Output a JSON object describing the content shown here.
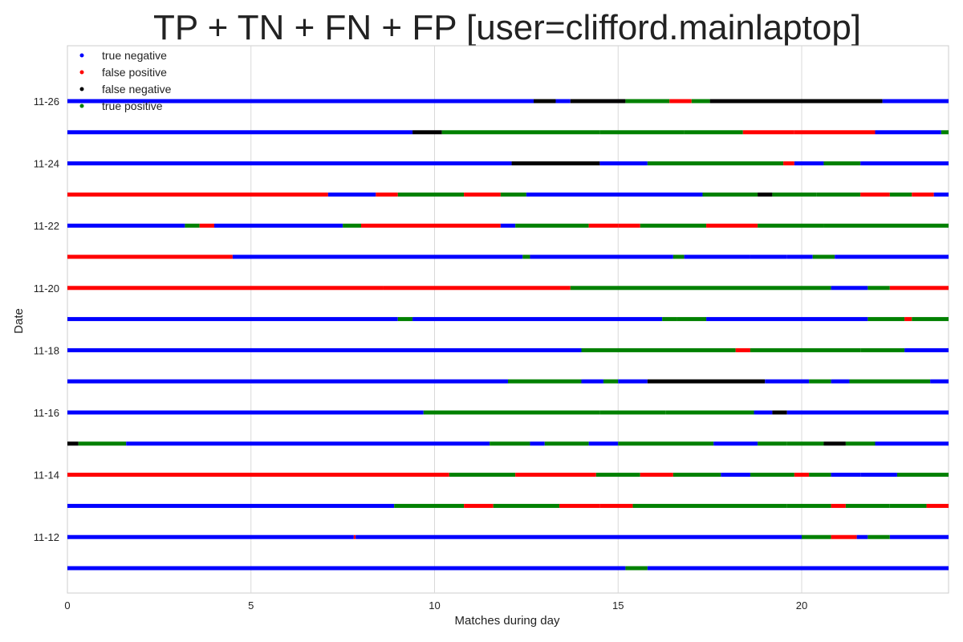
{
  "chart_data": {
    "type": "scatter",
    "title": "TP + TN + FN + FP [user=clifford.mainlaptop]",
    "xlabel": "Matches during day",
    "ylabel": "Date",
    "xlim": [
      0,
      24
    ],
    "x_ticks": [
      0,
      5,
      10,
      15,
      20
    ],
    "y_tick_labels": [
      "11-12",
      "11-14",
      "11-16",
      "11-18",
      "11-20",
      "11-22",
      "11-24",
      "11-26"
    ],
    "grid": true,
    "legend_placement": "top-left",
    "series": [
      {
        "name": "true negative",
        "color": "#0000ff"
      },
      {
        "name": "false positive",
        "color": "#ff0000"
      },
      {
        "name": "false negative",
        "color": "#000000"
      },
      {
        "name": "true positive",
        "color": "#008000"
      }
    ],
    "rows": [
      {
        "date": "11-11",
        "segments": [
          [
            0,
            15.2,
            0
          ],
          [
            15.2,
            15.8,
            3
          ],
          [
            15.8,
            24,
            0
          ]
        ]
      },
      {
        "date": "11-12",
        "segments": [
          [
            0,
            7.8,
            0
          ],
          [
            7.8,
            7.85,
            1
          ],
          [
            7.85,
            20,
            0
          ],
          [
            20,
            20.8,
            3
          ],
          [
            20.8,
            21.5,
            1
          ],
          [
            21.5,
            21.8,
            0
          ],
          [
            21.8,
            22.4,
            3
          ],
          [
            22.4,
            24,
            0
          ]
        ]
      },
      {
        "date": "11-13",
        "segments": [
          [
            0,
            8.9,
            0
          ],
          [
            8.9,
            10.8,
            3
          ],
          [
            10.8,
            11.6,
            1
          ],
          [
            11.6,
            13.4,
            3
          ],
          [
            13.4,
            14.5,
            1
          ],
          [
            14.5,
            15.4,
            1
          ],
          [
            15.4,
            19.6,
            3
          ],
          [
            19.6,
            20.8,
            3
          ],
          [
            20.8,
            21.2,
            1
          ],
          [
            21.2,
            22.4,
            3
          ],
          [
            22.4,
            23.4,
            3
          ],
          [
            23.4,
            24,
            1
          ]
        ]
      },
      {
        "date": "11-14",
        "segments": [
          [
            0,
            10.4,
            1
          ],
          [
            10.4,
            12.2,
            3
          ],
          [
            12.2,
            14.4,
            1
          ],
          [
            14.4,
            15.6,
            3
          ],
          [
            15.6,
            16.5,
            1
          ],
          [
            16.5,
            17.8,
            3
          ],
          [
            17.8,
            18.6,
            0
          ],
          [
            18.6,
            19.8,
            3
          ],
          [
            19.8,
            20.2,
            1
          ],
          [
            20.2,
            20.8,
            3
          ],
          [
            20.8,
            21.6,
            0
          ],
          [
            21.6,
            22.6,
            0
          ],
          [
            22.6,
            24,
            3
          ]
        ]
      },
      {
        "date": "11-15",
        "segments": [
          [
            0,
            0.3,
            2
          ],
          [
            0.3,
            1.6,
            3
          ],
          [
            1.6,
            11.5,
            0
          ],
          [
            11.5,
            12.6,
            3
          ],
          [
            12.6,
            13.0,
            0
          ],
          [
            13.0,
            14.2,
            3
          ],
          [
            14.2,
            15.0,
            0
          ],
          [
            15.0,
            17.6,
            3
          ],
          [
            17.6,
            18.8,
            0
          ],
          [
            18.8,
            19.6,
            3
          ],
          [
            19.6,
            20.6,
            3
          ],
          [
            20.6,
            21.2,
            2
          ],
          [
            21.2,
            22.0,
            3
          ],
          [
            22.0,
            24,
            0
          ]
        ]
      },
      {
        "date": "11-16",
        "segments": [
          [
            0,
            9.7,
            0
          ],
          [
            9.7,
            14.5,
            3
          ],
          [
            14.5,
            16.3,
            3
          ],
          [
            16.3,
            18.7,
            3
          ],
          [
            18.7,
            19.2,
            0
          ],
          [
            19.2,
            19.6,
            2
          ],
          [
            19.6,
            24,
            0
          ]
        ]
      },
      {
        "date": "11-17",
        "segments": [
          [
            0,
            12.0,
            0
          ],
          [
            12.0,
            14.0,
            3
          ],
          [
            14.0,
            14.6,
            0
          ],
          [
            14.6,
            15.0,
            3
          ],
          [
            15.0,
            15.8,
            0
          ],
          [
            15.8,
            19.0,
            2
          ],
          [
            19.0,
            20.2,
            0
          ],
          [
            20.2,
            20.8,
            3
          ],
          [
            20.8,
            21.3,
            0
          ],
          [
            21.3,
            23.5,
            3
          ],
          [
            23.5,
            24,
            0
          ]
        ]
      },
      {
        "date": "11-18",
        "segments": [
          [
            0,
            14.0,
            0
          ],
          [
            14.0,
            18.2,
            3
          ],
          [
            18.2,
            18.6,
            1
          ],
          [
            18.6,
            21.6,
            3
          ],
          [
            21.6,
            22.8,
            3
          ],
          [
            22.8,
            24,
            0
          ]
        ]
      },
      {
        "date": "11-19",
        "segments": [
          [
            0,
            9.0,
            0
          ],
          [
            9.0,
            9.4,
            3
          ],
          [
            9.4,
            16.2,
            0
          ],
          [
            16.2,
            16.6,
            3
          ],
          [
            16.6,
            17.4,
            3
          ],
          [
            17.4,
            21.8,
            0
          ],
          [
            21.8,
            22.8,
            3
          ],
          [
            22.8,
            23.0,
            1
          ],
          [
            23.0,
            24,
            3
          ]
        ]
      },
      {
        "date": "11-20",
        "segments": [
          [
            0,
            8.6,
            1
          ],
          [
            8.6,
            13.7,
            1
          ],
          [
            13.7,
            20.8,
            3
          ],
          [
            20.8,
            21.8,
            0
          ],
          [
            21.8,
            22.4,
            3
          ],
          [
            22.4,
            24,
            1
          ]
        ]
      },
      {
        "date": "11-21",
        "segments": [
          [
            0,
            4.5,
            1
          ],
          [
            4.5,
            12.4,
            0
          ],
          [
            12.4,
            12.6,
            3
          ],
          [
            12.6,
            16.5,
            0
          ],
          [
            16.5,
            16.8,
            3
          ],
          [
            16.8,
            18.6,
            0
          ],
          [
            18.6,
            19.6,
            0
          ],
          [
            19.6,
            20.3,
            0
          ],
          [
            20.3,
            20.9,
            3
          ],
          [
            20.9,
            24,
            0
          ]
        ]
      },
      {
        "date": "11-22",
        "segments": [
          [
            0,
            3.2,
            0
          ],
          [
            3.2,
            3.6,
            3
          ],
          [
            3.6,
            4.0,
            1
          ],
          [
            4.0,
            7.5,
            0
          ],
          [
            7.5,
            8.0,
            3
          ],
          [
            8.0,
            11.8,
            1
          ],
          [
            11.8,
            12.2,
            0
          ],
          [
            12.2,
            14.2,
            3
          ],
          [
            14.2,
            15.0,
            1
          ],
          [
            15.0,
            15.6,
            1
          ],
          [
            15.6,
            17.4,
            3
          ],
          [
            17.4,
            18.8,
            1
          ],
          [
            18.8,
            20.6,
            3
          ],
          [
            20.6,
            24,
            3
          ]
        ]
      },
      {
        "date": "11-23",
        "segments": [
          [
            0,
            7.1,
            1
          ],
          [
            7.1,
            8.4,
            0
          ],
          [
            8.4,
            9.0,
            1
          ],
          [
            9.0,
            10.8,
            3
          ],
          [
            10.8,
            11.8,
            1
          ],
          [
            11.8,
            12.5,
            3
          ],
          [
            12.5,
            17.3,
            0
          ],
          [
            17.3,
            18.8,
            3
          ],
          [
            18.8,
            19.2,
            2
          ],
          [
            19.2,
            20.4,
            3
          ],
          [
            20.4,
            21.6,
            3
          ],
          [
            21.6,
            22.4,
            1
          ],
          [
            22.4,
            23.0,
            3
          ],
          [
            23.0,
            23.6,
            1
          ],
          [
            23.6,
            24,
            0
          ]
        ]
      },
      {
        "date": "11-24",
        "segments": [
          [
            0,
            12.1,
            0
          ],
          [
            12.1,
            14.5,
            2
          ],
          [
            14.5,
            15.8,
            0
          ],
          [
            15.8,
            19.5,
            3
          ],
          [
            19.5,
            19.8,
            1
          ],
          [
            19.8,
            20.6,
            0
          ],
          [
            20.6,
            21.6,
            3
          ],
          [
            21.6,
            24,
            0
          ]
        ]
      },
      {
        "date": "11-25",
        "segments": [
          [
            0,
            9.4,
            0
          ],
          [
            9.4,
            10.2,
            2
          ],
          [
            10.2,
            14.5,
            3
          ],
          [
            14.5,
            16.8,
            3
          ],
          [
            16.8,
            18.4,
            3
          ],
          [
            18.4,
            19.8,
            1
          ],
          [
            19.8,
            22.0,
            1
          ],
          [
            22.0,
            23.8,
            0
          ],
          [
            23.8,
            24,
            3
          ]
        ]
      },
      {
        "date": "11-26",
        "segments": [
          [
            0,
            12.7,
            0
          ],
          [
            12.7,
            13.3,
            2
          ],
          [
            13.3,
            13.7,
            0
          ],
          [
            13.7,
            15.2,
            2
          ],
          [
            15.2,
            16.4,
            3
          ],
          [
            16.4,
            17.0,
            1
          ],
          [
            17.0,
            17.5,
            3
          ],
          [
            17.5,
            22.2,
            2
          ],
          [
            22.2,
            24,
            0
          ]
        ]
      }
    ]
  }
}
